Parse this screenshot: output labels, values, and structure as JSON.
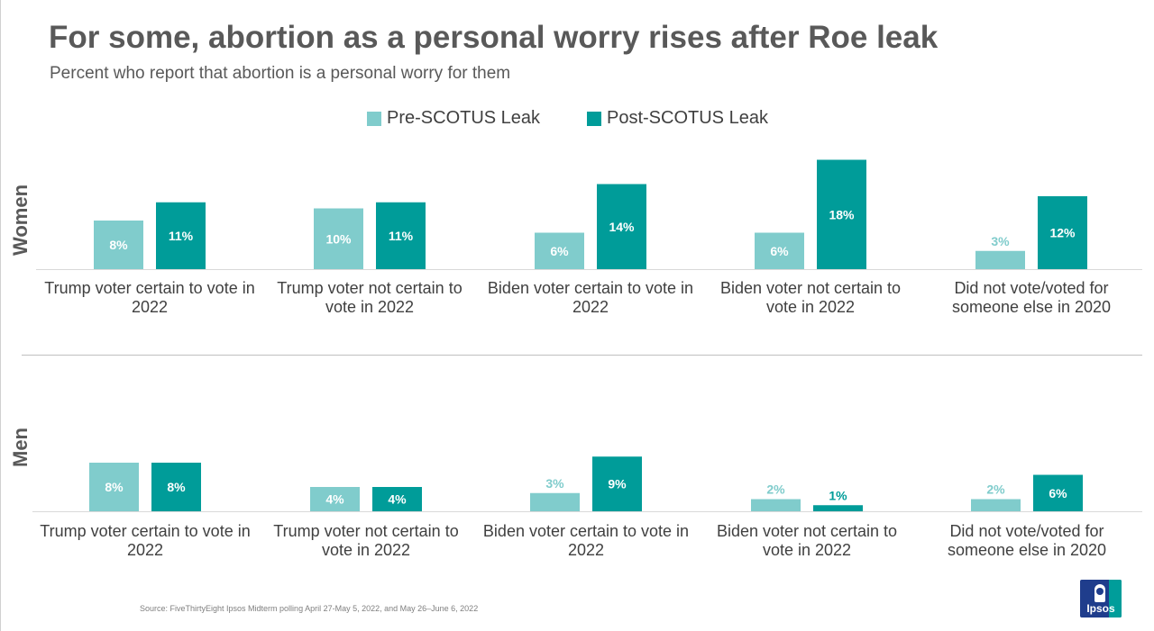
{
  "title": "For some, abortion as a personal worry rises after Roe leak",
  "subtitle": "Percent who report that abortion is a personal worry for them",
  "colors": {
    "pre": "#80cccc",
    "post": "#009c99",
    "text": "#595959"
  },
  "legend": {
    "pre_label": "Pre-SCOTUS Leak",
    "post_label": "Post-SCOTUS Leak"
  },
  "chart_data": [
    {
      "type": "bar",
      "title": "Women",
      "categories": [
        [
          "Trump voter certain to vote in",
          "2022"
        ],
        [
          "Trump voter not certain to",
          "vote in 2022"
        ],
        [
          "Biden voter certain to vote in",
          "2022"
        ],
        [
          "Biden voter not certain to",
          "vote in 2022"
        ],
        [
          "Did not vote/voted for",
          "someone else in 2020"
        ]
      ],
      "series": [
        {
          "name": "Pre-SCOTUS Leak",
          "values": [
            8,
            10,
            6,
            6,
            3
          ],
          "labels": [
            "8%",
            "10%",
            "6%",
            "6%",
            "3%"
          ]
        },
        {
          "name": "Post-SCOTUS Leak",
          "values": [
            11,
            11,
            14,
            18,
            12
          ],
          "labels": [
            "11%",
            "11%",
            "14%",
            "18%",
            "12%"
          ]
        }
      ],
      "ylim": [
        0,
        18
      ]
    },
    {
      "type": "bar",
      "title": "Men",
      "categories": [
        [
          "Trump voter certain to vote in",
          "2022"
        ],
        [
          "Trump voter not certain to",
          "vote in 2022"
        ],
        [
          "Biden voter certain to vote in",
          "2022"
        ],
        [
          "Biden voter not certain to",
          "vote in 2022"
        ],
        [
          "Did not vote/voted for",
          "someone else in 2020"
        ]
      ],
      "series": [
        {
          "name": "Pre-SCOTUS Leak",
          "values": [
            8,
            4,
            3,
            2,
            2
          ],
          "labels": [
            "8%",
            "4%",
            "3%",
            "2%",
            "2%"
          ]
        },
        {
          "name": "Post-SCOTUS Leak",
          "values": [
            8,
            4,
            9,
            1,
            6
          ],
          "labels": [
            "8%",
            "4%",
            "9%",
            "1%",
            "6%"
          ]
        }
      ],
      "ylim": [
        0,
        9
      ]
    }
  ],
  "source": "Source: FiveThirtyEight Ipsos Midterm polling April 27-May 5, 2022, and May 26–June 6, 2022",
  "logo": {
    "text": "Ipsos"
  }
}
